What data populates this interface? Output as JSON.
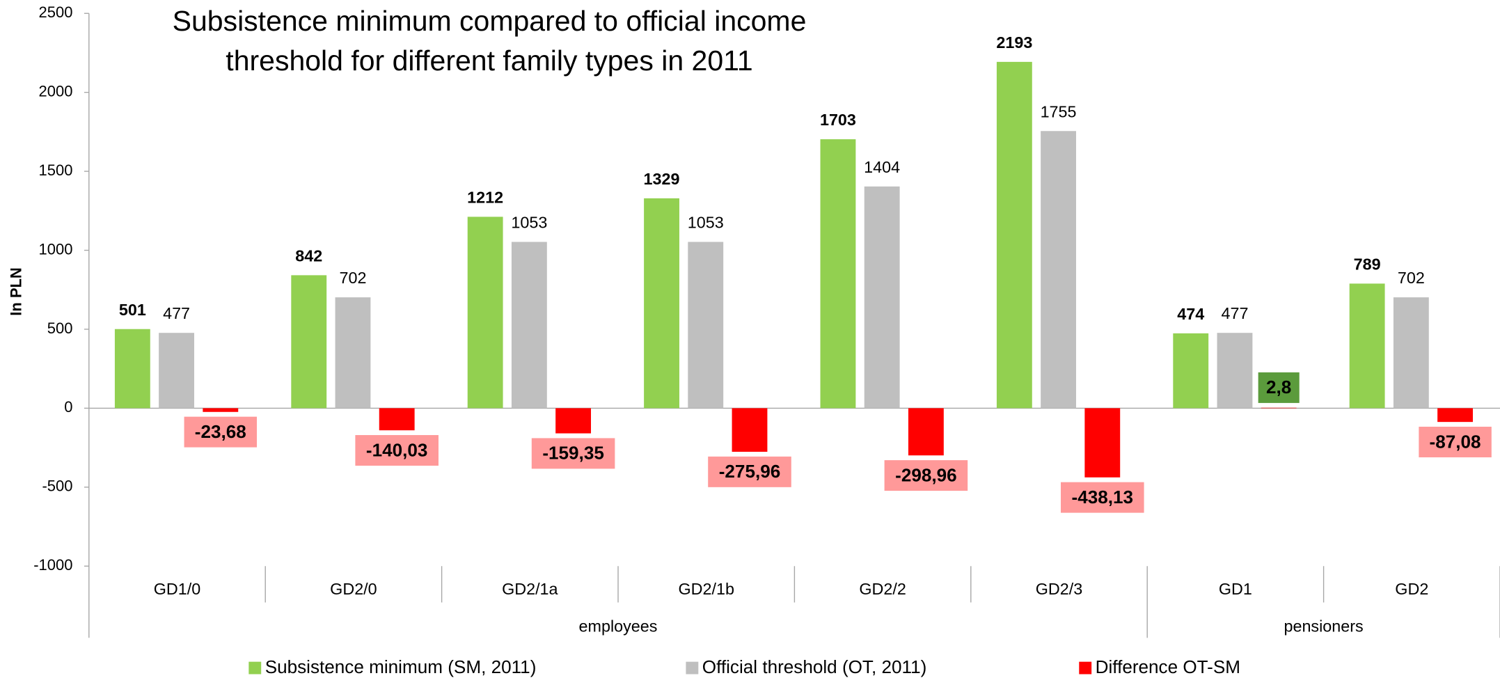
{
  "chart_data": {
    "type": "bar",
    "title": "Subsistence minimum compared to official income threshold for different family types in 2011",
    "y_label": "In PLN",
    "categories": [
      "GD1/0",
      "GD2/0",
      "GD2/1a",
      "GD2/1b",
      "GD2/2",
      "GD2/3",
      "GD1",
      "GD2"
    ],
    "category_groups": [
      "employees",
      "employees",
      "employees",
      "employees",
      "employees",
      "employees",
      "pensioners",
      "pensioners"
    ],
    "ylim": [
      -1000,
      2500
    ],
    "yticks": [
      -1000,
      -500,
      0,
      500,
      1000,
      1500,
      2000,
      2500
    ],
    "series": [
      {
        "name": "Subsistence minimum (SM, 2011)",
        "color": "#92d050",
        "values": [
          501,
          842,
          1212,
          1329,
          1703,
          2193,
          474,
          789
        ]
      },
      {
        "name": "Official threshold (OT, 2011)",
        "color": "#bfbfbf",
        "values": [
          477,
          702,
          1053,
          1053,
          1404,
          1755,
          477,
          702
        ]
      },
      {
        "name": "Difference OT-SM",
        "color": "#ff0000",
        "values": [
          -23.68,
          -140.03,
          -159.35,
          -275.96,
          -298.96,
          -438.13,
          2.8,
          -87.08
        ],
        "value_labels": [
          "-23,68",
          "-140,03",
          "-159,35",
          "-275,96",
          "-298,96",
          "-438,13",
          "2,8",
          "-87,08"
        ]
      }
    ]
  }
}
